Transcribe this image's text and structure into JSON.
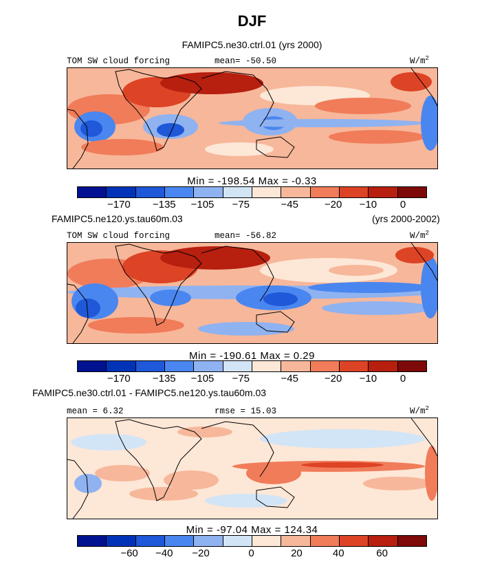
{
  "figure_title": "DJF",
  "colors": {
    "ramp12": [
      "#00128f",
      "#0033b8",
      "#1f58d8",
      "#4a86ef",
      "#8fb2f1",
      "#d2e5f6",
      "#fde7d7",
      "#f7b79a",
      "#f07c5a",
      "#dd4325",
      "#b71f0f",
      "#7d0a08"
    ],
    "land_outline": "#000000"
  },
  "panels": [
    {
      "id": "control",
      "heading": "FAMIPC5.ne30.ctrl.01 (yrs 2000)",
      "heading_right": "",
      "left_label": "TOM SW cloud forcing",
      "center_label": "mean= -50.50",
      "units": "W/m",
      "units_sup": "2",
      "minmax": "Min = -198.54 Max =  -0.33",
      "ticks": [
        "-170",
        "-135",
        "-105",
        "-75",
        "-45",
        "-20",
        "-10",
        "0"
      ]
    },
    {
      "id": "test",
      "heading": "FAMIPC5.ne120.ys.tau60m.03",
      "heading_right": "(yrs 2000-2002)",
      "left_label": "TOM SW cloud forcing",
      "center_label": "mean= -56.82",
      "units": "W/m",
      "units_sup": "2",
      "minmax": "Min = -190.61 Max =   0.29",
      "ticks": [
        "-170",
        "-135",
        "-105",
        "-75",
        "-45",
        "-20",
        "-10",
        "0"
      ]
    },
    {
      "id": "diff",
      "heading": "FAMIPC5.ne30.ctrl.01 - FAMIPC5.ne120.ys.tau60m.03",
      "heading_right": "",
      "left_label": "mean =   6.32",
      "center_label": "rmse =  15.03",
      "units": "W/m",
      "units_sup": "2",
      "minmax": "Min = -97.04 Max = 124.34",
      "ticks": [
        "-60",
        "-40",
        "-20",
        "0",
        "20",
        "40",
        "60"
      ]
    }
  ],
  "chart_data": [
    {
      "type": "heatmap",
      "title": "FAMIPC5.ne30.ctrl.01 (yrs 2000)",
      "variable": "TOM SW cloud forcing",
      "units": "W/m2",
      "mean": -50.5,
      "min": -198.54,
      "max": -0.33,
      "colorbar_levels": [
        -170,
        -135,
        -105,
        -75,
        -45,
        -20,
        -10,
        0
      ]
    },
    {
      "type": "heatmap",
      "title": "FAMIPC5.ne120.ys.tau60m.03 (yrs 2000-2002)",
      "variable": "TOM SW cloud forcing",
      "units": "W/m2",
      "mean": -56.82,
      "min": -190.61,
      "max": 0.29,
      "colorbar_levels": [
        -170,
        -135,
        -105,
        -75,
        -45,
        -20,
        -10,
        0
      ]
    },
    {
      "type": "heatmap",
      "title": "FAMIPC5.ne30.ctrl.01 - FAMIPC5.ne120.ys.tau60m.03",
      "units": "W/m2",
      "mean": 6.32,
      "rmse": 15.03,
      "min": -97.04,
      "max": 124.34,
      "colorbar_levels": [
        -60,
        -40,
        -20,
        0,
        20,
        40,
        60
      ]
    }
  ]
}
